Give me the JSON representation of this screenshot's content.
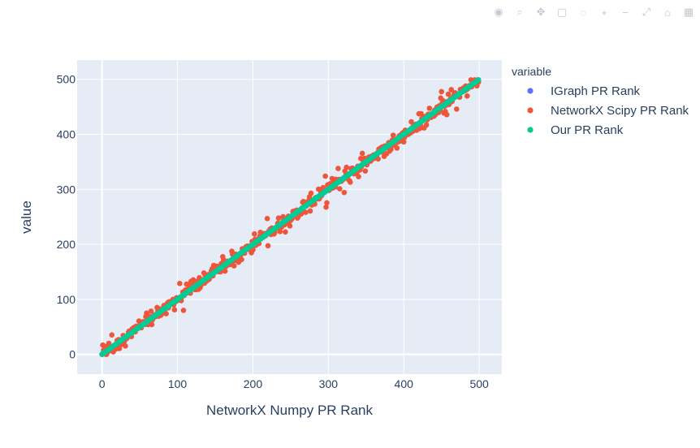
{
  "modebar": {
    "icons": [
      "camera-icon",
      "zoom-icon",
      "pan-icon",
      "box-select-icon",
      "lasso-icon",
      "zoom-in-icon",
      "zoom-out-icon",
      "autoscale-icon",
      "reset-axes-icon",
      "plotly-logo-icon"
    ]
  },
  "chart_data": {
    "type": "scatter",
    "title": "",
    "xlabel": "NetworkX Numpy PR Rank",
    "ylabel": "value",
    "xlim": [
      -33,
      530
    ],
    "ylim": [
      -36,
      535
    ],
    "x_ticks": [
      0,
      100,
      200,
      300,
      400,
      500
    ],
    "y_ticks": [
      0,
      100,
      200,
      300,
      400,
      500
    ],
    "grid": true,
    "legend": {
      "title": "variable",
      "placement": "right",
      "entries": [
        {
          "name": "IGraph PR Rank",
          "color": "#636efa"
        },
        {
          "name": "NetworkX Scipy PR Rank",
          "color": "#EF553B"
        },
        {
          "name": "Our PR Rank",
          "color": "#00cc96"
        }
      ]
    },
    "series": [
      {
        "name": "IGraph PR Rank",
        "color": "#636efa",
        "relation": "y = x",
        "x_range": [
          0,
          499
        ],
        "count": 500
      },
      {
        "name": "NetworkX Scipy PR Rank",
        "color": "#EF553B",
        "relation": "y ≈ x with scatter up to ±30",
        "x_range": [
          0,
          499
        ],
        "count": 500
      },
      {
        "name": "Our PR Rank",
        "color": "#00cc96",
        "relation": "y = x",
        "x_range": [
          0,
          499
        ],
        "count": 500
      }
    ]
  }
}
